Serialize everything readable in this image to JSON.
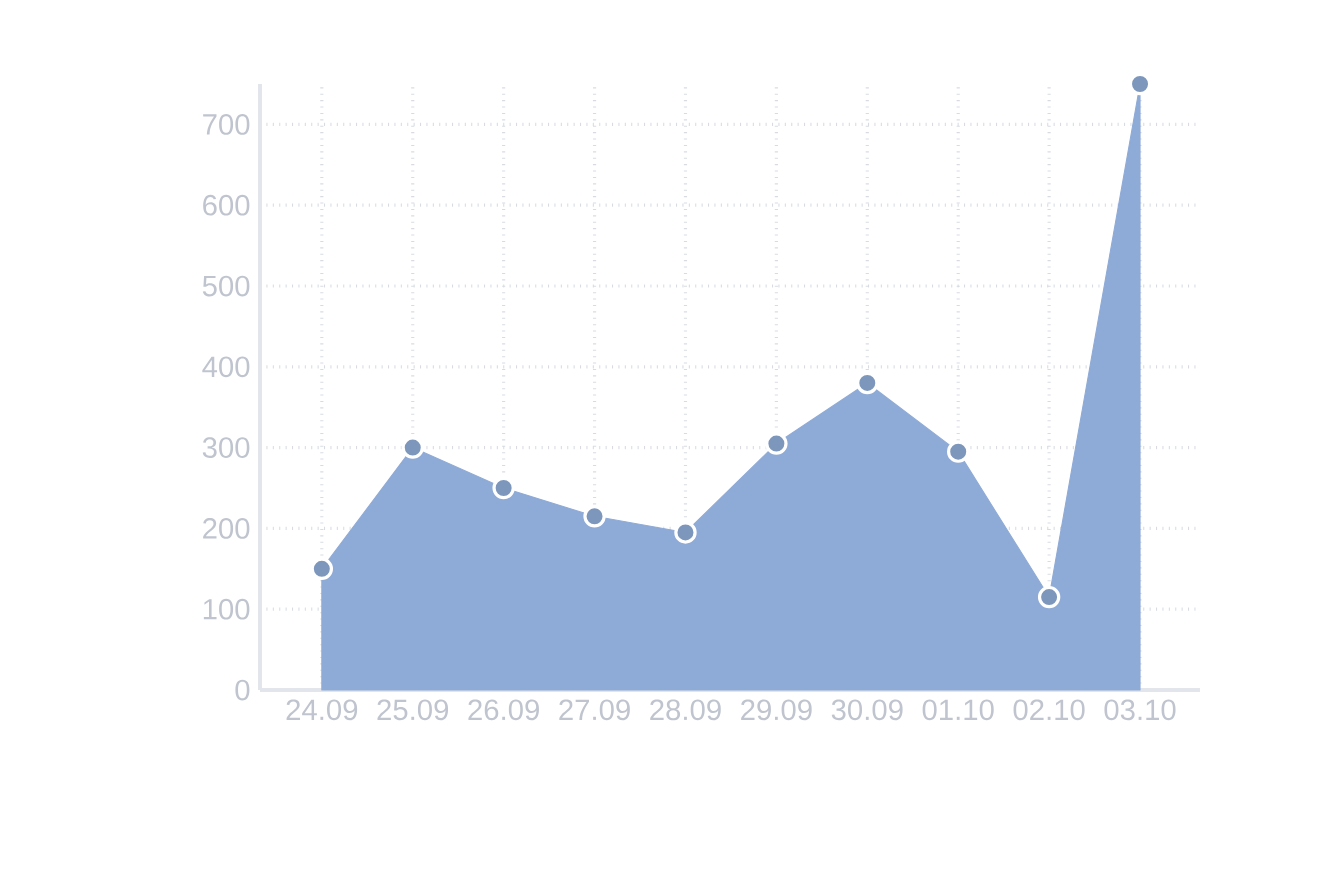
{
  "chart_data": {
    "type": "area",
    "categories": [
      "24.09",
      "25.09",
      "26.09",
      "27.09",
      "28.09",
      "29.09",
      "30.09",
      "01.10",
      "02.10",
      "03.10"
    ],
    "values": [
      150,
      300,
      250,
      215,
      195,
      305,
      380,
      295,
      115,
      750
    ],
    "color": "#8eaad6",
    "ylim": [
      0,
      750
    ],
    "yticks": [
      0,
      100,
      200,
      300,
      400,
      500,
      600,
      700
    ],
    "grid": true,
    "marker": "circle"
  }
}
